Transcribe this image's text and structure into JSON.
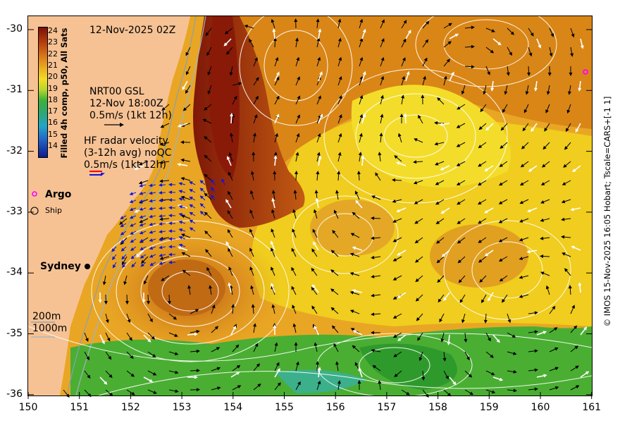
{
  "map": {
    "date_label": "12-Nov-2025 02Z",
    "gsl_line1": "NRT00 GSL",
    "gsl_line2": "12-Nov 18:00Z",
    "gsl_scale": "0.5m/s (1kt 12h)",
    "hf_line1": "HF radar velocity",
    "hf_line2": "(3-12h avg) noQC",
    "hf_scale": "0.5m/s (1kt 12h)",
    "argo_label": "Argo",
    "ship_label": "Ship",
    "city_label": "Sydney",
    "bathy_200": "200m",
    "bathy_1000": "1000m",
    "colorbar_title": "Filled 4h comp, p50, All Sats",
    "colorbar_ticks": [
      "24",
      "23",
      "22",
      "21",
      "20",
      "19",
      "18",
      "17",
      "16",
      "15",
      "14"
    ],
    "credit": "© IMOS 15-Nov-2025 16:05 Hobart; Tscale=CARS+[-1 1]",
    "x_ticks": [
      "150",
      "151",
      "152",
      "153",
      "154",
      "155",
      "156",
      "157",
      "158",
      "159",
      "160",
      "161"
    ],
    "y_ticks": [
      "-30",
      "-31",
      "-32",
      "-33",
      "-34",
      "-35",
      "-36"
    ],
    "colors": {
      "land": "#f6c294",
      "warm": "#9a1e0a",
      "mid": "#d87f17",
      "cool": "#f0d21c",
      "green": "#3da833",
      "hf_vectors": "#1414dc",
      "argo": "#ff00ff"
    }
  }
}
